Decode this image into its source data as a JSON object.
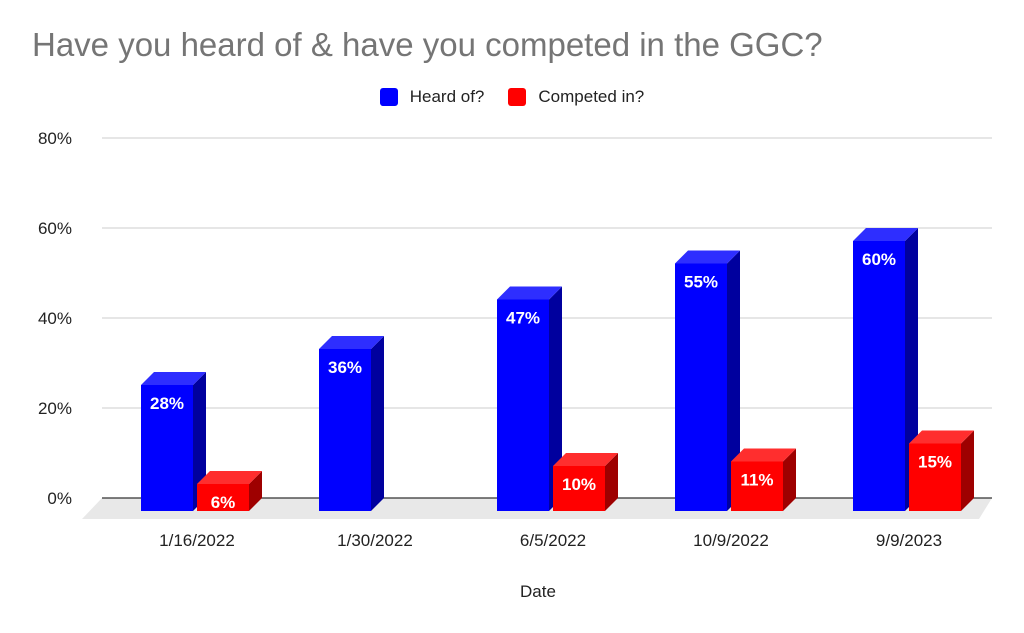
{
  "chart_data": {
    "type": "bar",
    "style": "3d-column",
    "title": "Have you heard of & have you competed in the GGC?",
    "xlabel": "Date",
    "ylabel": "",
    "categories": [
      "1/16/2022",
      "1/30/2022",
      "6/5/2022",
      "10/9/2022",
      "9/9/2023"
    ],
    "series": [
      {
        "name": "Heard of?",
        "color": "#0000ff",
        "values": [
          28,
          36,
          47,
          55,
          60
        ],
        "labels": [
          "28%",
          "36%",
          "47%",
          "55%",
          "60%"
        ]
      },
      {
        "name": "Competed in?",
        "color": "#ff0000",
        "values": [
          6,
          null,
          10,
          11,
          15
        ],
        "labels": [
          "6%",
          "",
          "10%",
          "11%",
          "15%"
        ]
      }
    ],
    "ylim": [
      0,
      80
    ],
    "yticks": [
      0,
      20,
      40,
      60,
      80
    ],
    "ytick_labels": [
      "0%",
      "20%",
      "40%",
      "60%",
      "80%"
    ],
    "grid": true,
    "legend_position": "top-center"
  }
}
